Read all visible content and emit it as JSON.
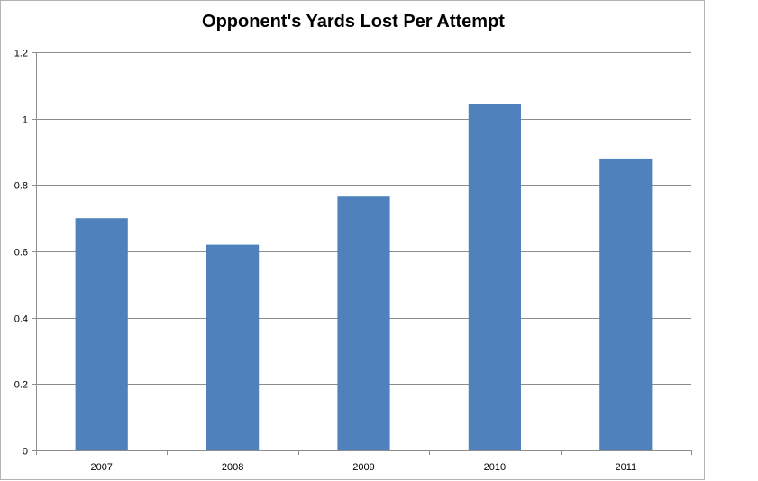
{
  "chart_data": {
    "type": "bar",
    "title": "Opponent's Yards Lost Per Attempt",
    "xlabel": "",
    "ylabel": "",
    "categories": [
      "2007",
      "2008",
      "2009",
      "2010",
      "2011"
    ],
    "values": [
      0.7,
      0.62,
      0.765,
      1.045,
      0.88
    ],
    "ylim": [
      0,
      1.2
    ],
    "y_ticks": [
      "0",
      "0.2",
      "0.4",
      "0.6",
      "0.8",
      "1",
      "1.2"
    ],
    "y_tick_values": [
      0,
      0.2,
      0.4,
      0.6,
      0.8,
      1.0,
      1.2
    ],
    "grid": true,
    "legend": "none",
    "bar_color": "#4f81bd",
    "grid_color": "#8c8c8c"
  }
}
